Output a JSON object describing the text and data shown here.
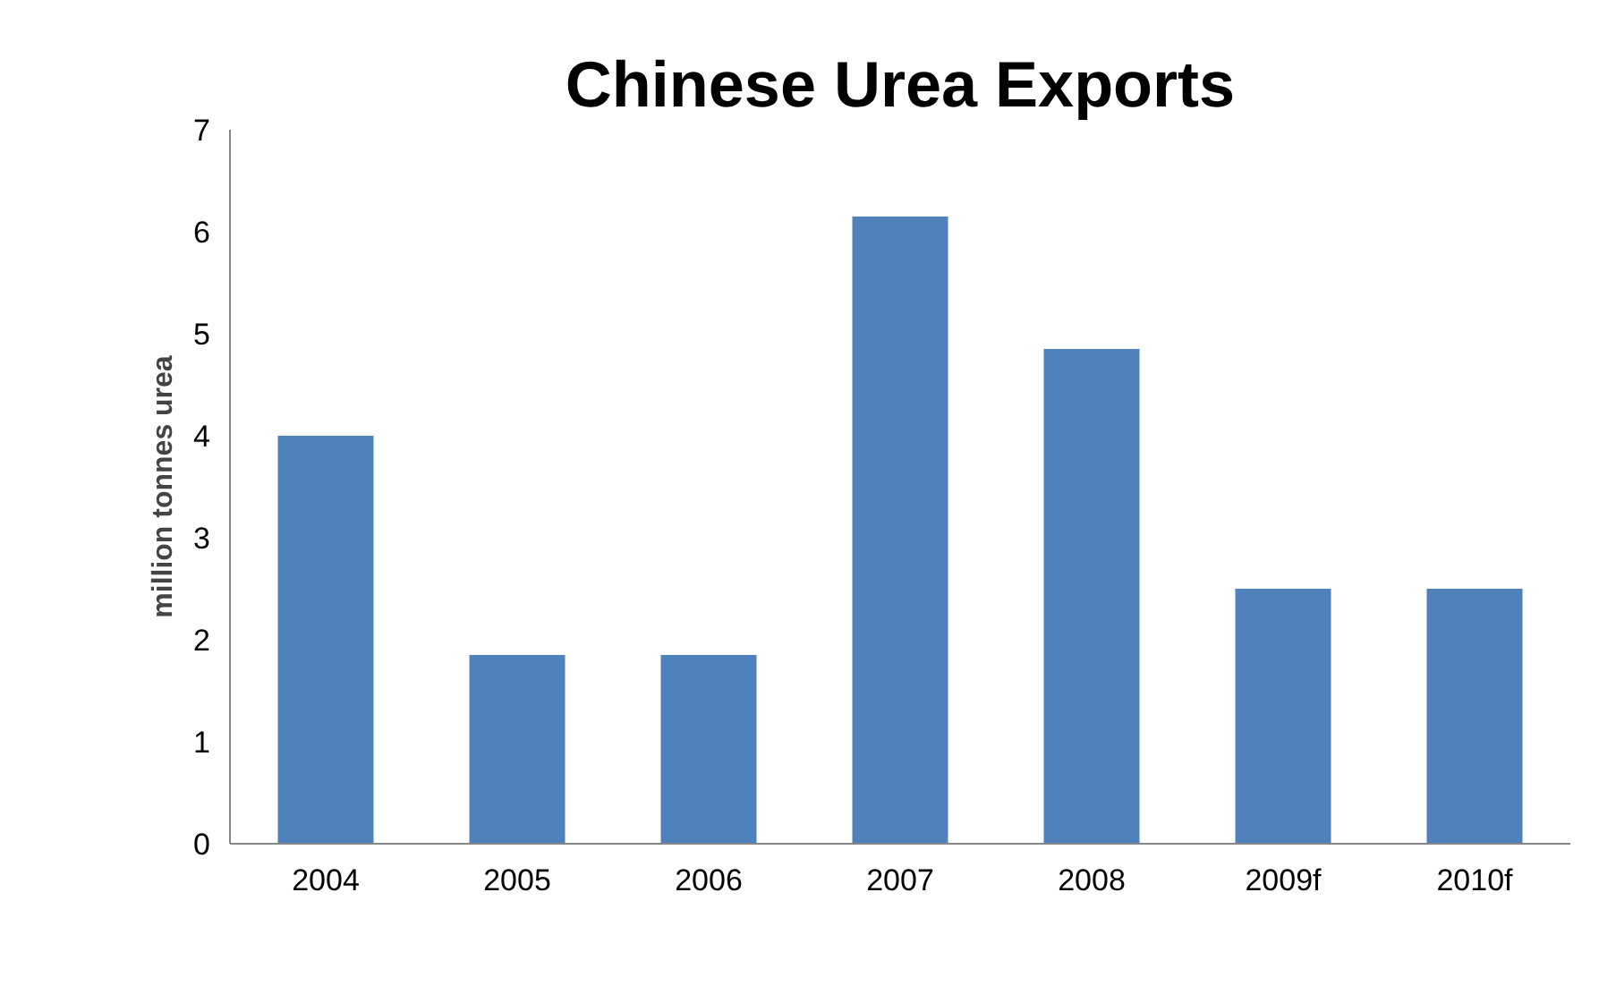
{
  "chart_data": {
    "type": "bar",
    "title": "Chinese Urea Exports",
    "ylabel": "million tonnes urea",
    "categories": [
      "2004",
      "2005",
      "2006",
      "2007",
      "2008",
      "2009f",
      "2010f"
    ],
    "values": [
      4.0,
      1.85,
      1.85,
      6.15,
      4.85,
      2.5,
      2.5
    ],
    "color": "#4f81bd",
    "ylim": [
      0,
      7
    ],
    "yticks": [
      0,
      1,
      2,
      3,
      4,
      5,
      6,
      7
    ],
    "grid": false
  }
}
